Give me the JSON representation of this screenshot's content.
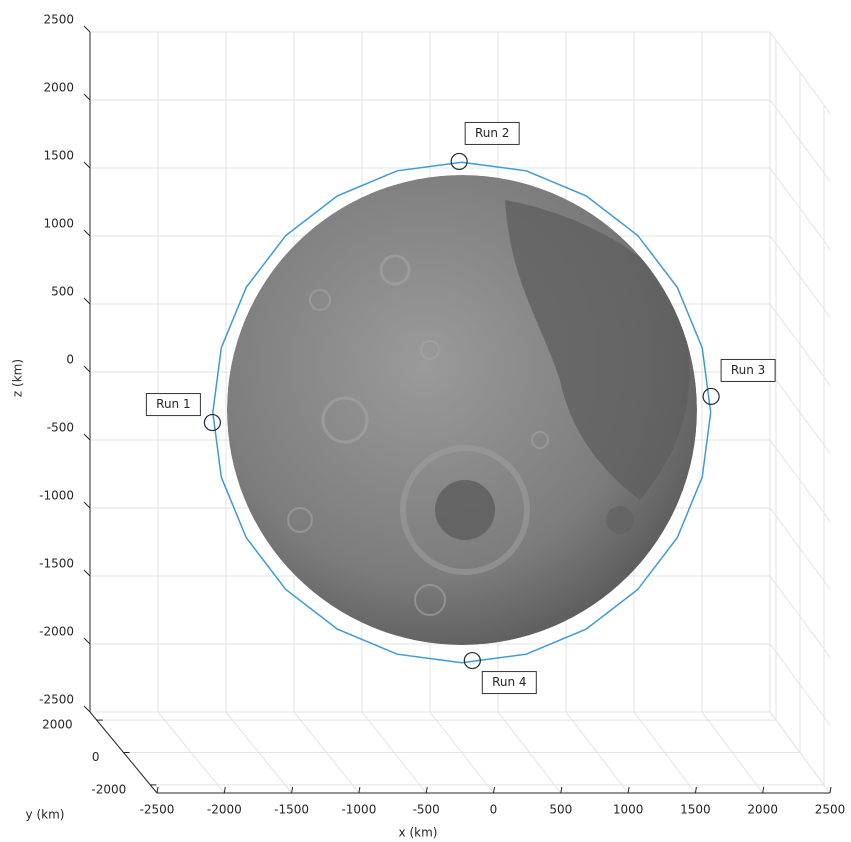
{
  "chart_data": {
    "type": "scatter3d",
    "xlabel": "x (km)",
    "ylabel": "y (km)",
    "zlabel": "z (km)",
    "xlim": [
      -2500,
      2500
    ],
    "ylim": [
      -2500,
      2500
    ],
    "zlim": [
      -2500,
      2500
    ],
    "xticks": [
      -2500,
      -2000,
      -1500,
      -1000,
      -500,
      0,
      500,
      1000,
      1500,
      2000,
      2500
    ],
    "yticks": [
      -2000,
      0,
      2000
    ],
    "zticks": [
      -2500,
      -2000,
      -1500,
      -1000,
      -500,
      0,
      500,
      1000,
      1500,
      2000,
      2500
    ],
    "grid": true,
    "series": [
      {
        "color": "#3d9ad8",
        "x": [
          1840,
          1777,
          1593,
          1301,
          920,
          476,
          0,
          -476,
          -920,
          -1301,
          -1593,
          -1777,
          -1840,
          -1777,
          -1593,
          -1301,
          -920,
          -476,
          0,
          476,
          920,
          1301,
          1593,
          1777,
          1840
        ],
        "z": [
          0,
          476,
          920,
          1301,
          1593,
          1777,
          1840,
          1777,
          1593,
          1301,
          920,
          476,
          0,
          -476,
          -920,
          -1301,
          -1593,
          -1777,
          -1840,
          -1777,
          -1593,
          -1301,
          -920,
          -476,
          0
        ]
      }
    ],
    "points": {
      "color": "#1f2a33",
      "labels": [
        "Run 1",
        "Run 2",
        "Run 3",
        "Run 4"
      ],
      "x": [
        -1843,
        -19,
        1843,
        78
      ],
      "z": [
        -74,
        1846,
        118,
        -1824
      ]
    }
  }
}
